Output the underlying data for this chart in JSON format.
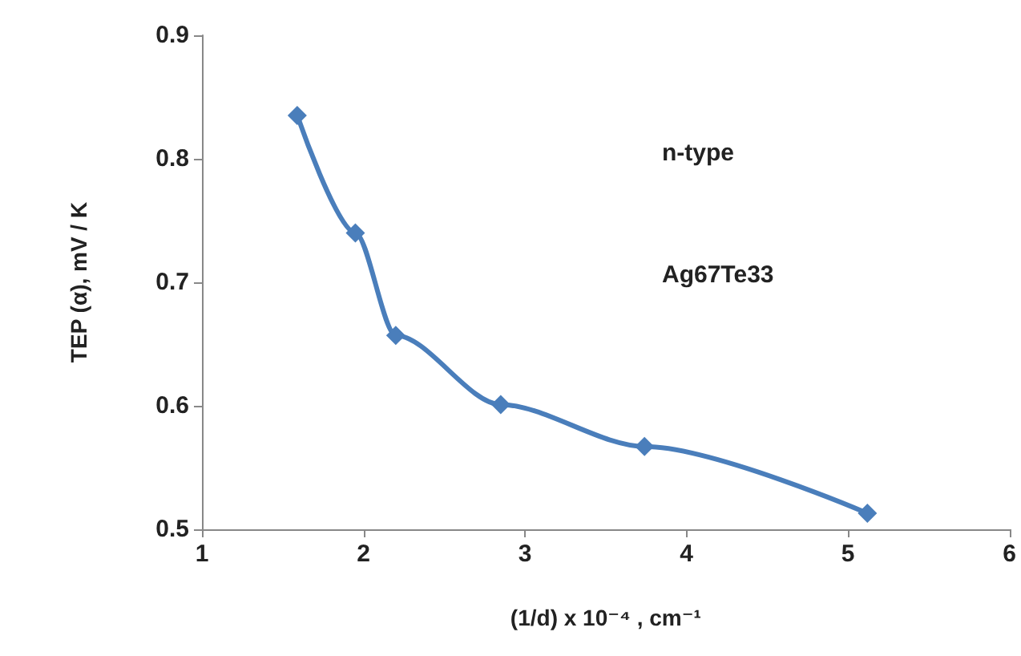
{
  "chart_data": {
    "type": "line",
    "xlabel": "(1/d) x 10⁻⁴ , cm⁻¹",
    "ylabel": "TEP (α), mV / K",
    "annotations": [
      "n-type",
      "Ag67Te33"
    ],
    "x": [
      1.59,
      1.95,
      2.2,
      2.85,
      3.74,
      5.12
    ],
    "series": [
      {
        "color": "#4a7ebb",
        "values": [
          0.835,
          0.74,
          0.657,
          0.601,
          0.567,
          0.513
        ]
      }
    ],
    "xlim": [
      1,
      6
    ],
    "xticks": [
      1,
      2,
      3,
      4,
      5,
      6
    ],
    "ylim": [
      0.5,
      0.9
    ],
    "yticks": [
      0.5,
      0.6,
      0.7,
      0.8,
      0.9
    ],
    "grid": false,
    "marker": "diamond",
    "line_style": "solid"
  }
}
